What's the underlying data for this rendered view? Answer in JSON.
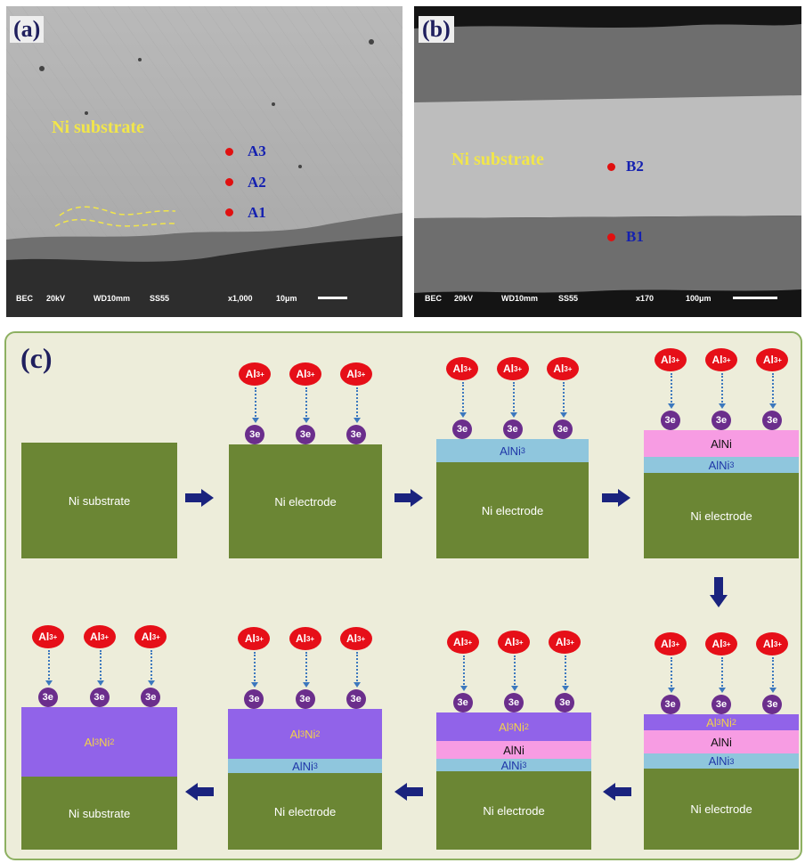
{
  "panel_a": {
    "label": "(a)",
    "substrate_text": "Ni substrate",
    "points": [
      "A3",
      "A2",
      "A1"
    ],
    "infobar": {
      "mode": "BEC",
      "kv": "20kV",
      "wd": "WD10mm",
      "ss": "SS55",
      "mag": "x1,000",
      "scale": "10μm"
    }
  },
  "panel_b": {
    "label": "(b)",
    "substrate_text": "Ni substrate",
    "points": [
      "B2",
      "B1"
    ],
    "infobar": {
      "mode": "BEC",
      "kv": "20kV",
      "wd": "WD10mm",
      "ss": "SS55",
      "mag": "x170",
      "scale": "100μm"
    }
  },
  "panel_c": {
    "label": "(c)",
    "ion": "Al",
    "ion_charge": "3+",
    "electrons": "3e",
    "stages": [
      {
        "id": "s1",
        "layers": [
          "Ni substrate"
        ]
      },
      {
        "id": "s2",
        "layers": [
          "Ni electrode"
        ]
      },
      {
        "id": "s3",
        "layers": [
          "AlNi3",
          "Ni electrode"
        ]
      },
      {
        "id": "s4",
        "layers": [
          "AlNi",
          "AlNi3",
          "Ni electrode"
        ]
      },
      {
        "id": "s5",
        "layers": [
          "Al3Ni2",
          "AlNi",
          "AlNi3",
          "Ni electrode"
        ]
      },
      {
        "id": "s6",
        "layers": [
          "Al3Ni2",
          "AlNi",
          "AlNi3",
          "Ni electrode"
        ]
      },
      {
        "id": "s7",
        "layers": [
          "Al3Ni2",
          "AlNi3",
          "Ni electrode"
        ]
      },
      {
        "id": "s8",
        "layers": [
          "Al3Ni2",
          "Ni  substrate"
        ]
      }
    ],
    "text": {
      "ni_substrate": "Ni substrate",
      "ni_substrate_final": "Ni  substrate",
      "ni_electrode": "Ni electrode",
      "alni3": "AlNi3",
      "alni": "AlNi",
      "al3ni2": "Al3Ni2"
    },
    "colors": {
      "ni": "#6b8634",
      "alni3": "#8fc6dd",
      "alni": "#f79ce3",
      "al3ni2": "#9163e9",
      "ion": "#e60f18",
      "electron": "#6b2e8c",
      "arrow": "#1a237e"
    }
  }
}
